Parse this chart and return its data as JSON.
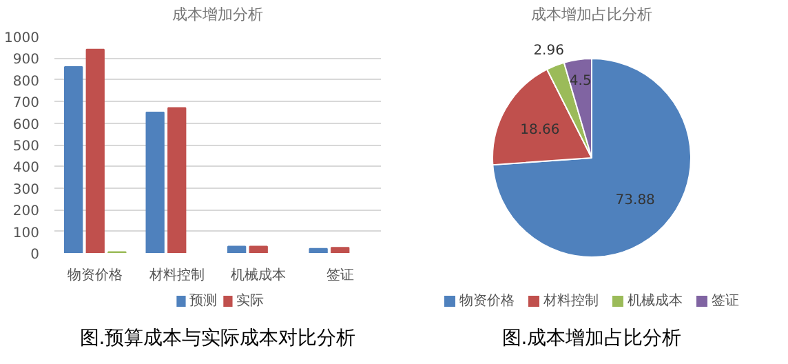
{
  "chart_data": [
    {
      "type": "bar",
      "title": "成本增加分析",
      "categories": [
        "物资价格",
        "材料控制",
        "机械成本",
        "签证"
      ],
      "series": [
        {
          "name": "预测",
          "color": "#4f81bd",
          "values": [
            860,
            650,
            30,
            20
          ]
        },
        {
          "name": "实际",
          "color": "#c0504d",
          "values": [
            940,
            670,
            30,
            25
          ]
        },
        {
          "color": "#9bbb59",
          "values": [
            5,
            null,
            null,
            null
          ]
        }
      ],
      "ylim": [
        0,
        1000
      ],
      "yticks": [
        0,
        100,
        200,
        300,
        400,
        500,
        600,
        700,
        800,
        900,
        1000
      ],
      "grid": "y",
      "legend": "bottom",
      "annotations": [
        "图.预算成本与实际成本对比分析"
      ]
    },
    {
      "type": "pie",
      "title": "成本增加占比分析",
      "categories": [
        "物资价格",
        "材料控制",
        "机械成本",
        "签证"
      ],
      "values": [
        73.88,
        18.66,
        2.96,
        4.5
      ],
      "colors": [
        "#4f81bd",
        "#c0504d",
        "#9bbb59",
        "#8064a2"
      ],
      "data_labels": true,
      "legend": "bottom",
      "annotations": [
        "图.成本增加占比分析"
      ]
    }
  ]
}
